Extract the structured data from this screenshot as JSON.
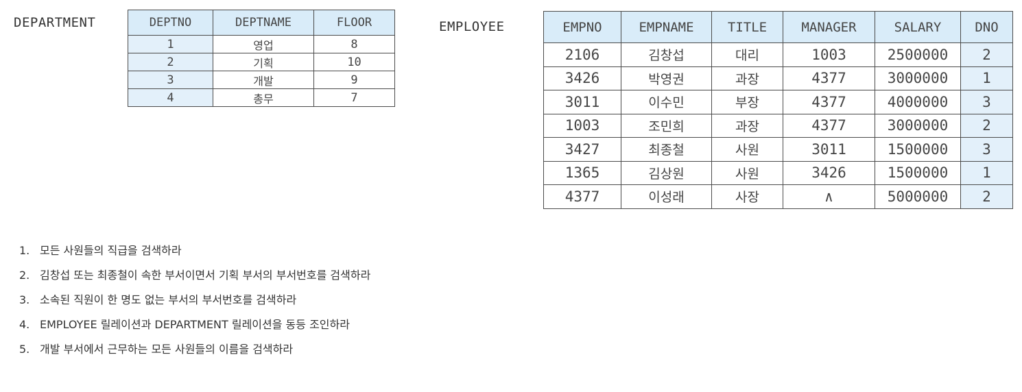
{
  "department": {
    "label": "DEPARTMENT",
    "headers": [
      "DEPTNO",
      "DEPTNAME",
      "FLOOR"
    ],
    "rows": [
      [
        "1",
        "영업",
        "8"
      ],
      [
        "2",
        "기획",
        "10"
      ],
      [
        "3",
        "개발",
        "9"
      ],
      [
        "4",
        "총무",
        "7"
      ]
    ]
  },
  "employee": {
    "label": "EMPLOYEE",
    "headers": [
      "EMPNO",
      "EMPNAME",
      "TITLE",
      "MANAGER",
      "SALARY",
      "DNO"
    ],
    "rows": [
      [
        "2106",
        "김창섭",
        "대리",
        "1003",
        "2500000",
        "2"
      ],
      [
        "3426",
        "박영권",
        "과장",
        "4377",
        "3000000",
        "1"
      ],
      [
        "3011",
        "이수민",
        "부장",
        "4377",
        "4000000",
        "3"
      ],
      [
        "1003",
        "조민희",
        "과장",
        "4377",
        "3000000",
        "2"
      ],
      [
        "3427",
        "최종철",
        "사원",
        "3011",
        "1500000",
        "3"
      ],
      [
        "1365",
        "김상원",
        "사원",
        "3426",
        "1500000",
        "1"
      ],
      [
        "4377",
        "이성래",
        "사장",
        "∧",
        "5000000",
        "2"
      ]
    ]
  },
  "questions": [
    {
      "num": "1.",
      "text": "모든 사원들의 직급을 검색하라"
    },
    {
      "num": "2.",
      "text": "김창섭 또는 최종철이 속한 부서이면서 기획 부서의 부서번호를 검색하라"
    },
    {
      "num": "3.",
      "text": "소속된 직원이 한 명도 없는 부서의 부서번호를 검색하라"
    },
    {
      "num": "4.",
      "text": "EMPLOYEE 릴레이션과 DEPARTMENT 릴레이션을 동등 조인하라"
    },
    {
      "num": "5.",
      "text": "개발 부서에서 근무하는 모든 사원들의 이름을 검색하라"
    }
  ]
}
